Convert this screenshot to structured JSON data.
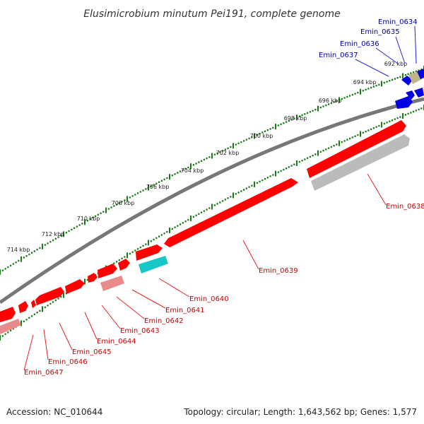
{
  "title": "Elusimicrobium minutum Pei191, complete genome",
  "accession": "Accession: NC_010644",
  "summary": "Topology: circular; Length: 1,643,562 bp; Genes: 1,577",
  "colors": {
    "cds_red": "#ff0000",
    "pink": "#e88a8a",
    "cyan": "#17c7c7",
    "blue": "#0000e0",
    "tan": "#c2b48c",
    "gray_track": "#bbbbbb",
    "backbone": "#777777",
    "ticks": "#1a7a1a",
    "label_red": "#cc0000",
    "label_blue": "#000099"
  },
  "ticks": [
    "692 kbp",
    "694 kbp",
    "696 kbp",
    "698 kbp",
    "700 kbp",
    "702 kbp",
    "704 kbp",
    "706 kbp",
    "708 kbp",
    "710 kbp",
    "712 kbp",
    "714 kbp"
  ],
  "genes": [
    {
      "id": "Emin_0634",
      "group": "blue"
    },
    {
      "id": "Emin_0635",
      "group": "blue"
    },
    {
      "id": "Emin_0636",
      "group": "blue"
    },
    {
      "id": "Emin_0637",
      "group": "blue"
    },
    {
      "id": "Emin_0638",
      "group": "red"
    },
    {
      "id": "Emin_0639",
      "group": "red"
    },
    {
      "id": "Emin_0640",
      "group": "red"
    },
    {
      "id": "Emin_0641",
      "group": "red"
    },
    {
      "id": "Emin_0642",
      "group": "red"
    },
    {
      "id": "Emin_0643",
      "group": "red"
    },
    {
      "id": "Emin_0644",
      "group": "red"
    },
    {
      "id": "Emin_0645",
      "group": "red"
    },
    {
      "id": "Emin_0646",
      "group": "red"
    },
    {
      "id": "Emin_0647",
      "group": "red"
    }
  ]
}
